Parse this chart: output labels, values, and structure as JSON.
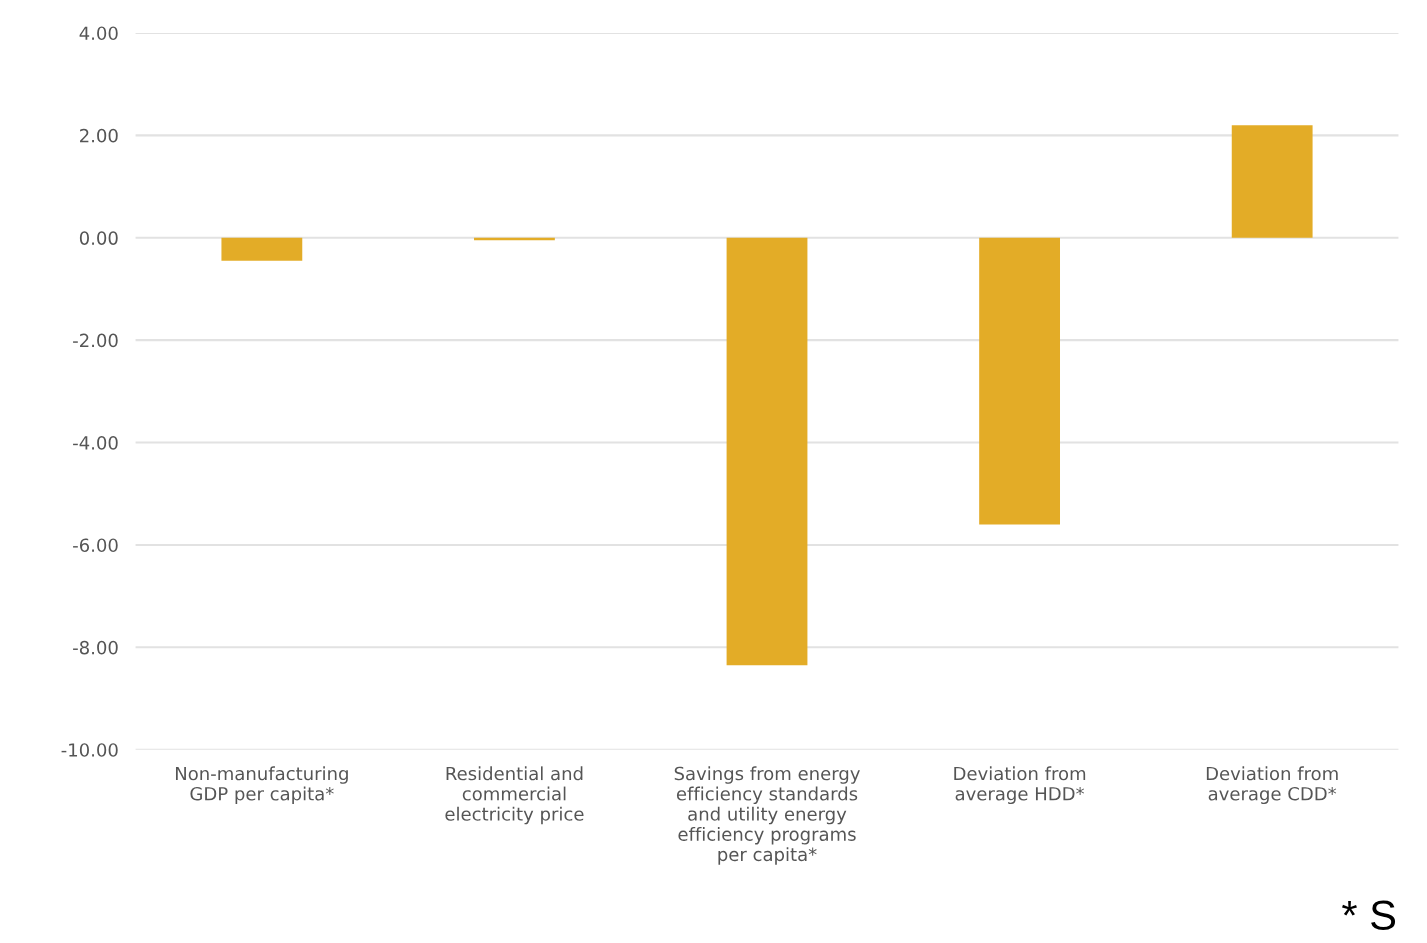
{
  "chart_data": {
    "type": "bar",
    "categories": [
      "Non-manufacturing\nGDP per capita*",
      "Residential and\ncommercial\nelectricity price",
      "Savings from energy\nefficiency standards\nand utility energy\nefficiency programs\nper capita*",
      "Deviation from\naverage HDD*",
      "Deviation from\naverage CDD*"
    ],
    "values": [
      -0.45,
      -0.05,
      -8.35,
      -5.6,
      2.2
    ],
    "color": "#e3ac27",
    "ylim": [
      -10,
      4
    ],
    "yticks": [
      {
        "value": -10,
        "label": "-10.00"
      },
      {
        "value": -8,
        "label": "-8.00"
      },
      {
        "value": -6,
        "label": "-6.00"
      },
      {
        "value": -4,
        "label": "-4.00"
      },
      {
        "value": -2,
        "label": "-2.00"
      },
      {
        "value": 0,
        "label": "0.00"
      },
      {
        "value": 2,
        "label": "2.00"
      },
      {
        "value": 4,
        "label": "4.00"
      }
    ],
    "grid": "y",
    "annotations": [
      "* S"
    ]
  }
}
